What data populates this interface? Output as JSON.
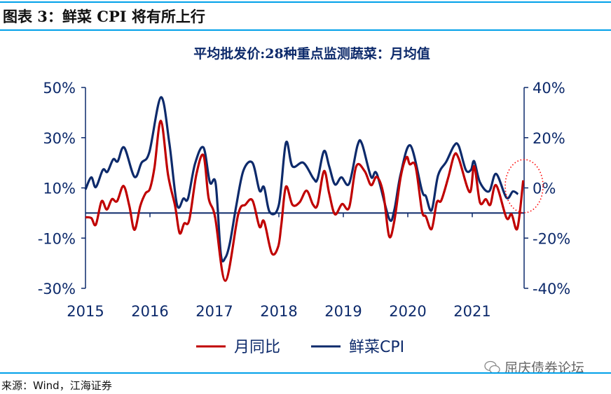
{
  "figure_title": "图表 3：鲜菜 CPI 将有所上行",
  "source": "来源：Wind，江海证券",
  "watermark": "屈庆债券论坛",
  "colors": {
    "accent": "#00a0e9",
    "red": "#c00000",
    "navy": "#0d2a6b"
  },
  "chart_data": {
    "type": "line",
    "title": "平均批发价:28种重点监测蔬菜：月均值",
    "x_ticks": [
      "2015",
      "2016",
      "2017",
      "2018",
      "2019",
      "2020",
      "2021"
    ],
    "xlim": [
      2015,
      2021.8
    ],
    "y_left": {
      "ticks": [
        "50%",
        "30%",
        "10%",
        "-10%",
        "-30%"
      ],
      "tick_values": [
        50,
        30,
        10,
        -10,
        -30
      ],
      "ylim": [
        -30,
        50
      ]
    },
    "y_right": {
      "ticks": [
        "40%",
        "20%",
        "0%",
        "-20%",
        "-40%"
      ],
      "tick_values": [
        40,
        20,
        0,
        -20,
        -40
      ],
      "ylim": [
        -40,
        40
      ]
    },
    "annotation": "red dotted circle around latest values",
    "series": [
      {
        "name": "月同比",
        "axis": "left",
        "color": "#c00000",
        "x": [
          2015.0,
          2015.09,
          2015.16,
          2015.25,
          2015.33,
          2015.41,
          2015.49,
          2015.59,
          2015.68,
          2015.76,
          2015.85,
          2015.93,
          2016.0,
          2016.07,
          2016.17,
          2016.28,
          2016.39,
          2016.46,
          2016.53,
          2016.61,
          2016.72,
          2016.83,
          2016.91,
          2017.01,
          2017.17,
          2017.37,
          2017.48,
          2017.59,
          2017.7,
          2017.77,
          2017.89,
          2017.99,
          2018.04,
          2018.11,
          2018.21,
          2018.32,
          2018.43,
          2018.53,
          2018.6,
          2018.7,
          2018.78,
          2018.87,
          2018.98,
          2019.09,
          2019.2,
          2019.33,
          2019.43,
          2019.52,
          2019.62,
          2019.71,
          2019.79,
          2019.89,
          2019.98,
          2020.03,
          2020.12,
          2020.22,
          2020.28,
          2020.37,
          2020.45,
          2020.52,
          2020.63,
          2020.72,
          2020.79,
          2020.96,
          2021.03,
          2021.12,
          2021.21,
          2021.28,
          2021.37,
          2021.53,
          2021.61,
          2021.7,
          2021.79
        ],
        "values": [
          -1.7,
          -2,
          -4.7,
          4.7,
          1.4,
          5.5,
          4.7,
          10.8,
          2.8,
          -6.7,
          2.8,
          7.8,
          9.7,
          18,
          36.7,
          15.3,
          2.8,
          -8,
          -4.2,
          -2.8,
          15.3,
          23,
          6,
          -1.5,
          -27,
          -0.5,
          3.3,
          5,
          -5.5,
          -3.3,
          -16,
          -13.3,
          -4.2,
          10.5,
          3.3,
          4.2,
          8.9,
          3.3,
          3.3,
          16.7,
          7.8,
          -0.5,
          3.6,
          2.2,
          18.6,
          16.7,
          11.1,
          14.4,
          7.8,
          -9.2,
          -3.3,
          14.4,
          22.2,
          19.4,
          18.6,
          0.8,
          -1.4,
          -6.4,
          4.2,
          5,
          14.4,
          23,
          21.7,
          8.3,
          18.6,
          4.2,
          5.5,
          3.3,
          11.1,
          -1.9,
          -0.5,
          -6.1,
          13
        ]
      },
      {
        "name": "鲜菜CPI",
        "axis": "right",
        "color": "#0d2a6b",
        "x": [
          2015.0,
          2015.09,
          2015.16,
          2015.27,
          2015.34,
          2015.43,
          2015.5,
          2015.6,
          2015.76,
          2015.87,
          2015.99,
          2016.17,
          2016.3,
          2016.42,
          2016.52,
          2016.59,
          2016.7,
          2016.83,
          2016.93,
          2017.02,
          2017.1,
          2017.17,
          2017.24,
          2017.34,
          2017.45,
          2017.59,
          2017.7,
          2017.77,
          2017.86,
          2018.0,
          2018.11,
          2018.21,
          2018.38,
          2018.54,
          2018.6,
          2018.7,
          2018.78,
          2018.87,
          2018.97,
          2019.09,
          2019.22,
          2019.29,
          2019.43,
          2019.52,
          2019.71,
          2019.79,
          2019.89,
          2020.04,
          2020.22,
          2020.28,
          2020.37,
          2020.47,
          2020.6,
          2020.72,
          2020.79,
          2020.9,
          2020.98,
          2021.03,
          2021.12,
          2021.26,
          2021.37,
          2021.53,
          2021.63,
          2021.71
        ],
        "values": [
          -0.6,
          4.2,
          0.3,
          7.2,
          6.4,
          11.4,
          10.6,
          16.1,
          4.4,
          10,
          14.2,
          36.1,
          18,
          -6.7,
          -4.2,
          -4.2,
          9.7,
          16.1,
          2.2,
          1.7,
          -26.4,
          -27.8,
          -21.9,
          -6.9,
          6.9,
          10,
          -1.1,
          0.3,
          -9.7,
          -6.7,
          18,
          8.6,
          10,
          3.6,
          3.6,
          14.7,
          8.6,
          1.4,
          4.2,
          1.7,
          16.9,
          17.5,
          4.4,
          5.6,
          -12.2,
          -8.9,
          5.6,
          16.9,
          -1.1,
          -3.3,
          -8.9,
          5,
          10.6,
          16.9,
          16.7,
          7.2,
          7.2,
          10.6,
          2.2,
          -1.4,
          5.6,
          -3.9,
          -1.4,
          -2.5
        ]
      }
    ]
  }
}
